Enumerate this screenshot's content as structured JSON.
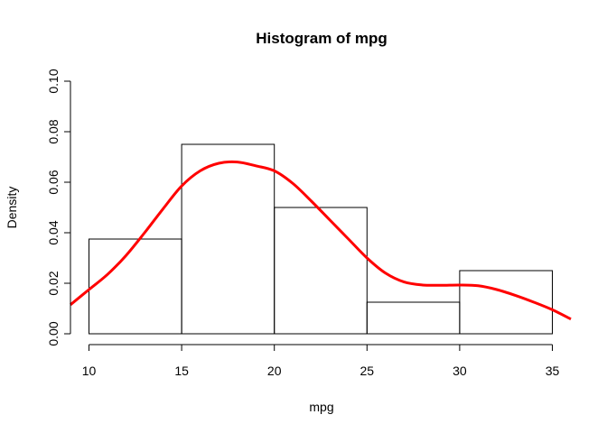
{
  "chart_data": {
    "type": "histogram",
    "title": "Histogram of mpg",
    "xlabel": "mpg",
    "ylabel": "Density",
    "xlim": [
      9,
      36
    ],
    "ylim": [
      0,
      0.1
    ],
    "x_ticks": [
      "10",
      "15",
      "20",
      "25",
      "30",
      "35"
    ],
    "y_ticks": [
      "0.00",
      "0.02",
      "0.04",
      "0.06",
      "0.08",
      "0.10"
    ],
    "bins": [
      {
        "start": 10,
        "end": 15,
        "density": 0.0375
      },
      {
        "start": 15,
        "end": 20,
        "density": 0.075
      },
      {
        "start": 20,
        "end": 25,
        "density": 0.05
      },
      {
        "start": 25,
        "end": 30,
        "density": 0.0125
      },
      {
        "start": 30,
        "end": 35,
        "density": 0.025
      }
    ],
    "density_curve": {
      "color": "#ff0000",
      "points": [
        [
          9,
          0.0115
        ],
        [
          10,
          0.0175
        ],
        [
          11,
          0.0235
        ],
        [
          12,
          0.031
        ],
        [
          13,
          0.04
        ],
        [
          14,
          0.0495
        ],
        [
          15,
          0.0585
        ],
        [
          16,
          0.0645
        ],
        [
          17,
          0.0675
        ],
        [
          18,
          0.068
        ],
        [
          19,
          0.0665
        ],
        [
          20,
          0.0645
        ],
        [
          21,
          0.0595
        ],
        [
          22,
          0.0525
        ],
        [
          23,
          0.045
        ],
        [
          24,
          0.0375
        ],
        [
          25,
          0.03
        ],
        [
          26,
          0.024
        ],
        [
          27,
          0.0205
        ],
        [
          28,
          0.0193
        ],
        [
          29,
          0.0192
        ],
        [
          30,
          0.0193
        ],
        [
          31,
          0.019
        ],
        [
          32,
          0.0175
        ],
        [
          33,
          0.0152
        ],
        [
          34,
          0.0125
        ],
        [
          35,
          0.0095
        ],
        [
          36,
          0.0058
        ]
      ]
    },
    "grid": false,
    "legend": "none"
  }
}
